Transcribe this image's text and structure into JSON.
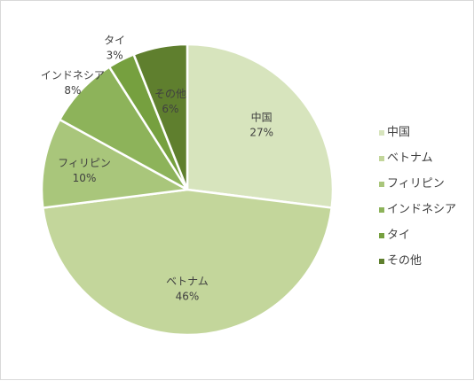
{
  "chart_data": {
    "type": "pie",
    "categories": [
      "中国",
      "ベトナム",
      "フィリピン",
      "インドネシア",
      "タイ",
      "その他"
    ],
    "values": [
      27,
      46,
      10,
      8,
      3,
      6
    ],
    "data_labels": [
      {
        "name": "中国",
        "percent": "27%"
      },
      {
        "name": "ベトナム",
        "percent": "46%"
      },
      {
        "name": "フィリピン",
        "percent": "10%"
      },
      {
        "name": "インドネシア",
        "percent": "8%"
      },
      {
        "name": "タイ",
        "percent": "3%"
      },
      {
        "name": "その他",
        "percent": "6%"
      }
    ],
    "colors": [
      "#d7e4bd",
      "#c3d69b",
      "#a9c67b",
      "#8db35a",
      "#76a03f",
      "#5f7f2e"
    ],
    "start_angle_deg": 0,
    "direction": "clockwise",
    "legend_position": "right",
    "title": ""
  },
  "legend": {
    "items": [
      {
        "label": "中国",
        "color": "#d7e4bd"
      },
      {
        "label": "ベトナム",
        "color": "#c3d69b"
      },
      {
        "label": "フィリピン",
        "color": "#a9c67b"
      },
      {
        "label": "インドネシア",
        "color": "#8db35a"
      },
      {
        "label": "タイ",
        "color": "#76a03f"
      },
      {
        "label": "その他",
        "color": "#5f7f2e"
      }
    ]
  }
}
